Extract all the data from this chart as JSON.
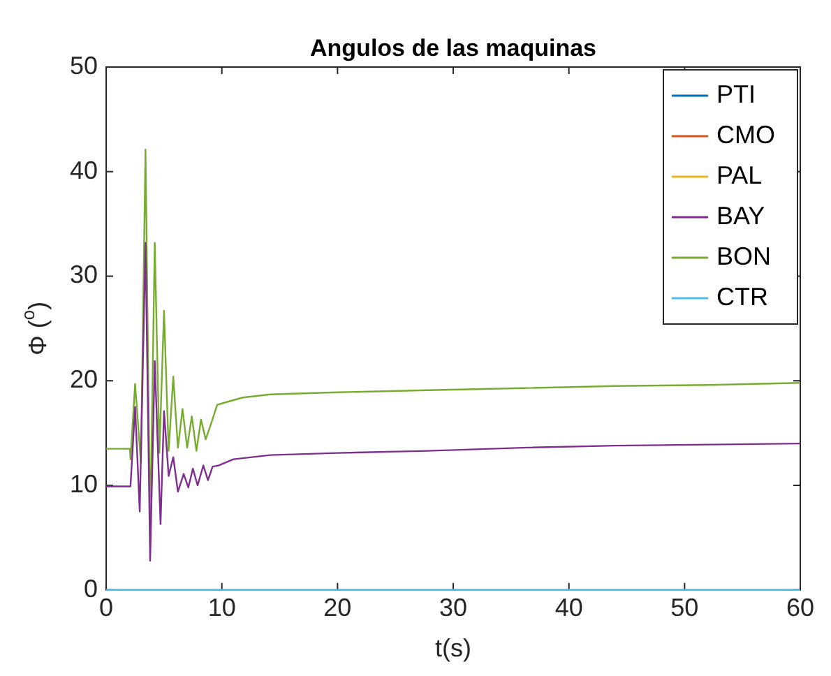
{
  "chart_data": {
    "type": "line",
    "title": "Angulos de las maquinas",
    "xlabel": "t(s)",
    "ylabel": "Φ ($^{o}$)",
    "xlim": [
      0,
      60
    ],
    "ylim": [
      0,
      50
    ],
    "xticks": [
      0,
      10,
      20,
      30,
      40,
      50,
      60
    ],
    "yticks": [
      0,
      10,
      20,
      30,
      40,
      50
    ],
    "grid": false,
    "legend": "top right",
    "marker": "none",
    "line_style": "solid",
    "series": [
      {
        "name": "PTI",
        "color": "#0072bd"
      },
      {
        "name": "CMO",
        "color": "#d95319"
      },
      {
        "name": "PAL",
        "color": "#edb120"
      },
      {
        "name": "BAY",
        "color": "#7e2f8e",
        "x": [
          0,
          2.1,
          2.5,
          2.9,
          3.4,
          3.8,
          4.2,
          4.7,
          5.0,
          5.4,
          5.8,
          6.2,
          6.7,
          7.1,
          7.5,
          7.9,
          8.4,
          8.8,
          9.2,
          9.7,
          11.0,
          14.2,
          20,
          27.8,
          36,
          44,
          52,
          60
        ],
        "values": [
          9.9,
          9.9,
          17.5,
          7.5,
          33.2,
          2.8,
          21.9,
          6.3,
          17.1,
          10.9,
          12.7,
          9.4,
          11.1,
          9.8,
          11.6,
          10.0,
          11.9,
          10.5,
          11.8,
          11.9,
          12.5,
          12.9,
          13.1,
          13.3,
          13.6,
          13.8,
          13.9,
          14.0
        ]
      },
      {
        "name": "BON",
        "color": "#77ac30",
        "x": [
          0,
          2.05,
          2.1,
          2.5,
          3.0,
          3.4,
          3.8,
          4.2,
          4.6,
          5.0,
          5.4,
          5.8,
          6.2,
          6.6,
          7.0,
          7.4,
          7.8,
          8.2,
          8.6,
          9.1,
          9.6,
          10.2,
          11.8,
          14.2,
          20,
          27.8,
          36,
          44,
          52,
          60
        ],
        "values": [
          13.5,
          13.5,
          12.5,
          19.7,
          12.2,
          42.1,
          5.7,
          33.2,
          13.1,
          26.7,
          13.3,
          20.4,
          13.6,
          17.3,
          13.6,
          16.6,
          13.3,
          16.3,
          14.4,
          16.0,
          17.7,
          17.9,
          18.4,
          18.7,
          18.9,
          19.1,
          19.3,
          19.5,
          19.6,
          19.8
        ]
      },
      {
        "name": "CTR",
        "color": "#4dbeee",
        "x": [
          0,
          60
        ],
        "values": [
          0,
          0
        ]
      }
    ]
  }
}
